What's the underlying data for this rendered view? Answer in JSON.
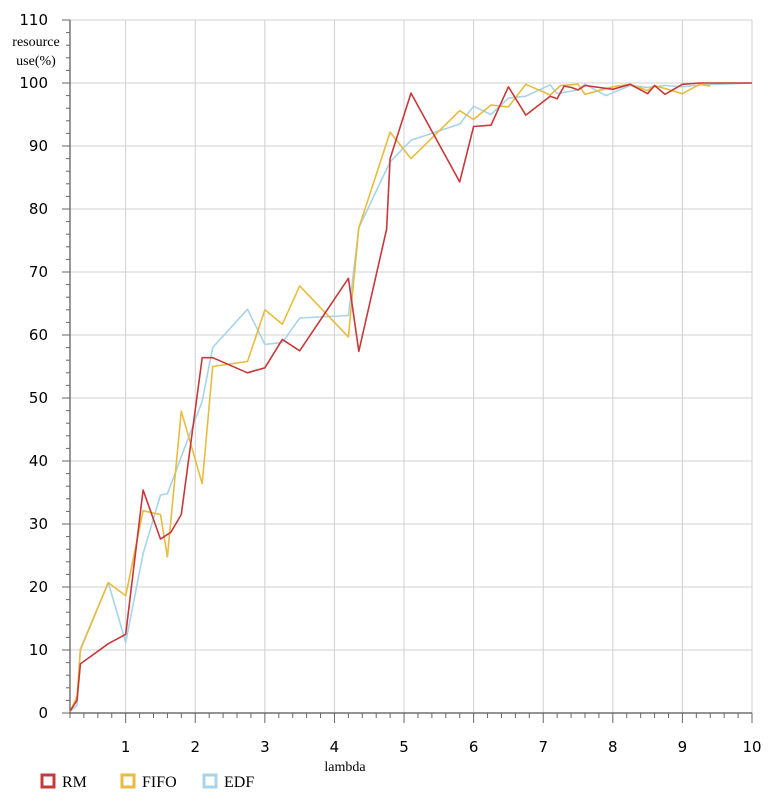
{
  "chart_data": {
    "type": "line",
    "xlabel": "lambda",
    "ylabel": "resource use(%)",
    "xlim": [
      0.2,
      10
    ],
    "ylim": [
      0,
      110
    ],
    "x_ticks": [
      1,
      2,
      3,
      4,
      5,
      6,
      7,
      8,
      9,
      10
    ],
    "y_ticks": [
      0,
      10,
      20,
      30,
      40,
      50,
      60,
      70,
      80,
      90,
      100,
      110
    ],
    "grid": true,
    "legend_position": "bottom-left",
    "series": [
      {
        "name": "RM",
        "color": "#c8383a",
        "points": [
          [
            0.2,
            0.3
          ],
          [
            0.3,
            2
          ],
          [
            0.35,
            7.8
          ],
          [
            0.75,
            11
          ],
          [
            1.0,
            12.5
          ],
          [
            1.25,
            35.4
          ],
          [
            1.5,
            27.6
          ],
          [
            1.65,
            28.7
          ],
          [
            1.8,
            31.5
          ],
          [
            2.1,
            56.4
          ],
          [
            2.25,
            56.4
          ],
          [
            2.75,
            54
          ],
          [
            3.0,
            54.8
          ],
          [
            3.25,
            59.3
          ],
          [
            3.5,
            57.5
          ],
          [
            4.2,
            69
          ],
          [
            4.35,
            57.4
          ],
          [
            4.75,
            76.8
          ],
          [
            4.8,
            88
          ],
          [
            5.1,
            98.4
          ],
          [
            5.8,
            84.3
          ],
          [
            6.0,
            93.1
          ],
          [
            6.25,
            93.3
          ],
          [
            6.5,
            99.4
          ],
          [
            6.75,
            94.9
          ],
          [
            7.1,
            97.9
          ],
          [
            7.2,
            97.5
          ],
          [
            7.3,
            99.5
          ],
          [
            7.4,
            99.3
          ],
          [
            7.5,
            98.9
          ],
          [
            7.6,
            99.6
          ],
          [
            8.0,
            99
          ],
          [
            8.25,
            99.8
          ],
          [
            8.5,
            98.3
          ],
          [
            8.6,
            99.6
          ],
          [
            8.75,
            98.2
          ],
          [
            9.0,
            99.8
          ],
          [
            9.25,
            100
          ],
          [
            10.0,
            100
          ]
        ]
      },
      {
        "name": "FIFO",
        "color": "#e8bc3c",
        "points": [
          [
            0.2,
            0.2
          ],
          [
            0.3,
            2.6
          ],
          [
            0.35,
            10
          ],
          [
            0.75,
            20.7
          ],
          [
            1.0,
            18.6
          ],
          [
            1.25,
            32.1
          ],
          [
            1.5,
            31.5
          ],
          [
            1.6,
            24.8
          ],
          [
            1.8,
            47.9
          ],
          [
            2.1,
            36.4
          ],
          [
            2.25,
            55
          ],
          [
            2.75,
            55.8
          ],
          [
            3.0,
            64
          ],
          [
            3.25,
            61.7
          ],
          [
            3.5,
            67.8
          ],
          [
            4.2,
            59.7
          ],
          [
            4.35,
            77
          ],
          [
            4.8,
            92.2
          ],
          [
            5.1,
            88
          ],
          [
            5.8,
            95.6
          ],
          [
            6.0,
            94.2
          ],
          [
            6.25,
            96.5
          ],
          [
            6.5,
            96.2
          ],
          [
            6.75,
            99.8
          ],
          [
            7.1,
            98.1
          ],
          [
            7.25,
            99.6
          ],
          [
            7.5,
            99.8
          ],
          [
            7.6,
            98.2
          ],
          [
            8.0,
            99.4
          ],
          [
            8.25,
            99.8
          ],
          [
            8.5,
            98.8
          ],
          [
            8.6,
            99.6
          ],
          [
            9.0,
            98.3
          ],
          [
            9.25,
            99.8
          ],
          [
            9.4,
            99.5
          ]
        ]
      },
      {
        "name": "EDF",
        "color": "#a8d4e8",
        "points": [
          [
            0.2,
            0.2
          ],
          [
            0.3,
            1.2
          ],
          [
            0.35,
            10.2
          ],
          [
            0.75,
            20.7
          ],
          [
            1.0,
            11.2
          ],
          [
            1.25,
            25.3
          ],
          [
            1.5,
            34.6
          ],
          [
            1.6,
            34.8
          ],
          [
            2.1,
            49.5
          ],
          [
            2.25,
            58
          ],
          [
            2.75,
            64.1
          ],
          [
            3.0,
            58.5
          ],
          [
            3.25,
            58.8
          ],
          [
            3.5,
            62.7
          ],
          [
            4.2,
            63.1
          ],
          [
            4.35,
            77
          ],
          [
            4.8,
            87.5
          ],
          [
            5.1,
            90.9
          ],
          [
            5.8,
            93.5
          ],
          [
            6.0,
            96.3
          ],
          [
            6.25,
            95
          ],
          [
            6.5,
            97.6
          ],
          [
            6.75,
            97.9
          ],
          [
            7.1,
            99.7
          ],
          [
            7.2,
            98.3
          ],
          [
            7.5,
            98.9
          ],
          [
            7.6,
            99.8
          ],
          [
            7.9,
            98
          ],
          [
            8.25,
            99.6
          ],
          [
            8.5,
            99.3
          ],
          [
            8.75,
            99.6
          ],
          [
            9.0,
            99.4
          ],
          [
            9.25,
            99.7
          ],
          [
            10.0,
            100
          ]
        ]
      }
    ]
  }
}
